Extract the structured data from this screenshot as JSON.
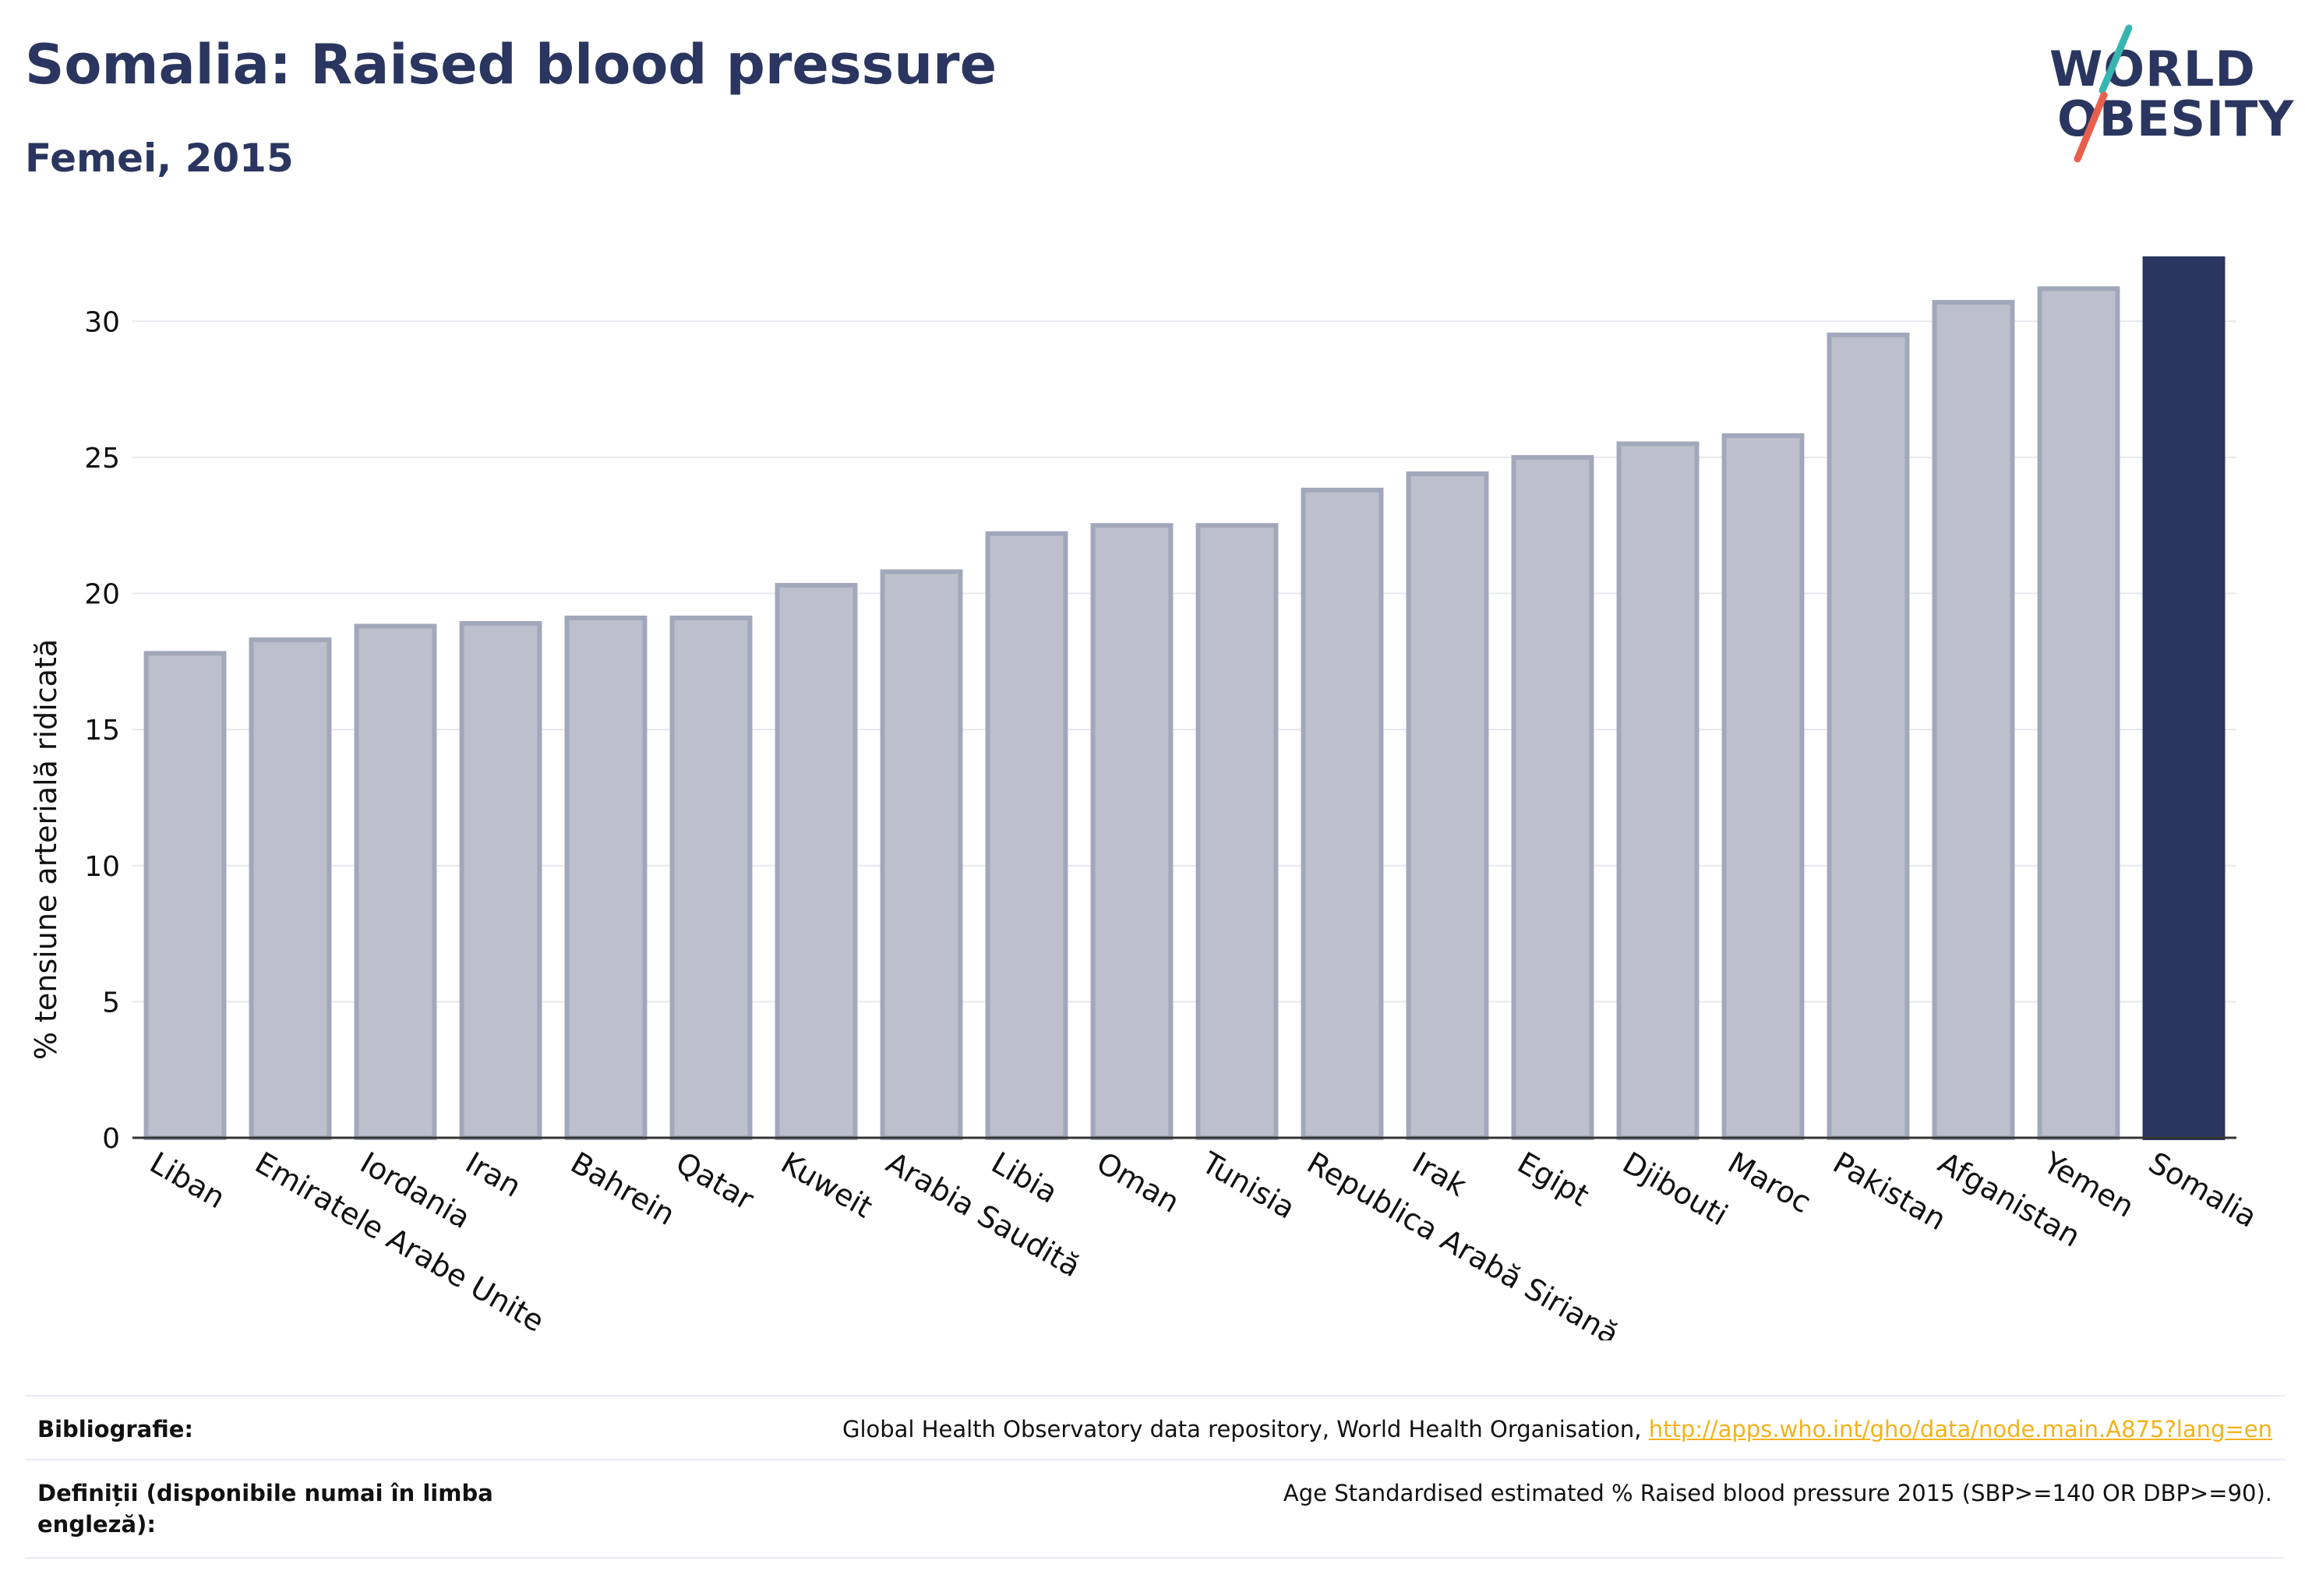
{
  "header": {
    "title": "Somalia: Raised blood pressure",
    "subtitle": "Femei, 2015"
  },
  "logo": {
    "line1": "WORLD",
    "line2": "OBESITY",
    "slash_colors": [
      "#37b5b0",
      "#e8604c"
    ]
  },
  "colors": {
    "bar": "#bcc0cc",
    "bar_stroke": "#a2a8bb",
    "highlight": "#2a365f",
    "grid": "#e6e8ee",
    "axis": "#333333",
    "text": "#2a365f",
    "link": "#f2b31b"
  },
  "chart_data": {
    "type": "bar",
    "title": "Somalia: Raised blood pressure",
    "subtitle": "Femei, 2015",
    "ylabel": "% tensiune arterială ridicată",
    "xlabel": "",
    "ylim": [
      0,
      32.5
    ],
    "yticks": [
      0,
      5,
      10,
      15,
      20,
      25,
      30
    ],
    "grid": true,
    "highlight_category": "Somalia",
    "categories": [
      "Liban",
      "Emiratele Arabe Unite",
      "Iordania",
      "Iran",
      "Bahrein",
      "Qatar",
      "Kuweit",
      "Arabia Saudită",
      "Libia",
      "Oman",
      "Tunisia",
      "Republica Arabă Siriană",
      "Irak",
      "Egipt",
      "Djibouti",
      "Maroc",
      "Pakistan",
      "Afganistan",
      "Yemen",
      "Somalia"
    ],
    "values": [
      17.8,
      18.3,
      18.8,
      18.9,
      19.1,
      19.1,
      20.3,
      20.8,
      22.2,
      22.5,
      22.5,
      23.8,
      24.4,
      25.0,
      25.5,
      25.8,
      29.5,
      30.7,
      31.2,
      32.3
    ]
  },
  "footer": {
    "bibliography_label": "Bibliografie:",
    "bibliography_text": "Global Health Observatory data repository, World Health Organisation, ",
    "bibliography_link": "http://apps.who.int/gho/data/node.main.A875?lang=en",
    "definitions_label": "Definiții (disponibile numai în limba engleză):",
    "definitions_text": "Age Standardised estimated % Raised blood pressure 2015 (SBP>=140 OR DBP>=90)."
  }
}
